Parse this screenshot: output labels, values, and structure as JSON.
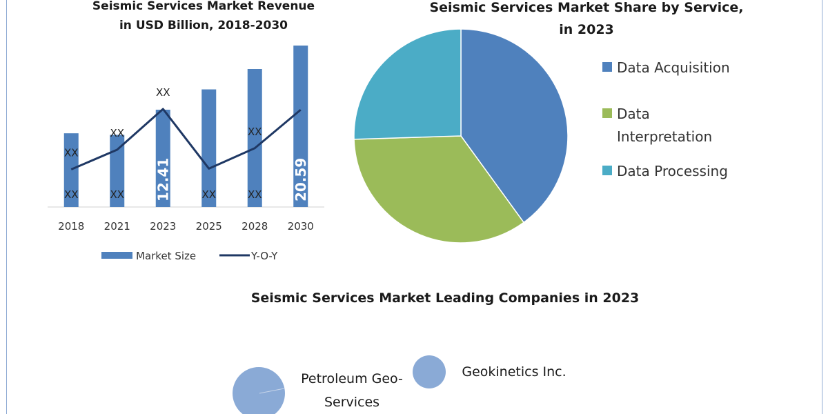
{
  "chart_data": [
    {
      "type": "bar",
      "title_line1": "Seismic Services Market Revenue",
      "title_line2": "in USD Billion, 2018-2030",
      "categories": [
        "2018",
        "2021",
        "2023",
        "2025",
        "2028",
        "2030"
      ],
      "series": [
        {
          "name": "Market Size",
          "type": "bar",
          "color": "#4f81bd",
          "values": [
            9.4,
            9.2,
            12.41,
            15.0,
            17.6,
            20.59
          ],
          "data_labels": [
            "XX",
            "XX",
            "12.41",
            "XX",
            "XX",
            "20.59"
          ]
        },
        {
          "name": "Y-O-Y",
          "type": "line",
          "color": "#1f3864",
          "values": [
            4.8,
            7.3,
            12.5,
            4.9,
            7.5,
            12.4
          ],
          "data_labels": [
            "XX",
            "XX",
            "XX",
            "",
            "XX",
            ""
          ]
        }
      ],
      "ylim": [
        0,
        22
      ],
      "legend_position": "bottom",
      "grid": false
    },
    {
      "type": "pie",
      "title_line1": "Seismic Services Market Share by Service,",
      "title_line2": "in 2023",
      "slices": [
        {
          "label": "Data Acquisition",
          "label_line1": "Data Acquisition",
          "label_line2": "",
          "value": 40,
          "color": "#4f81bd"
        },
        {
          "label": "Data Interpretation",
          "label_line1": "Data",
          "label_line2": "Interpretation",
          "value": 34.5,
          "color": "#9bbb59"
        },
        {
          "label": "Data Processing",
          "label_line1": "Data Processing",
          "label_line2": "",
          "value": 25.5,
          "color": "#4bacc6"
        }
      ],
      "legend_position": "right"
    }
  ],
  "companies": {
    "title": "Seismic Services Market Leading Companies in 2023",
    "items": [
      {
        "label_line1": "Petroleum Geo-",
        "label_line2": "Services",
        "color": "#8aaad6"
      },
      {
        "label_line1": "Geokinetics Inc.",
        "label_line2": "",
        "color": "#8aaad6"
      }
    ]
  }
}
